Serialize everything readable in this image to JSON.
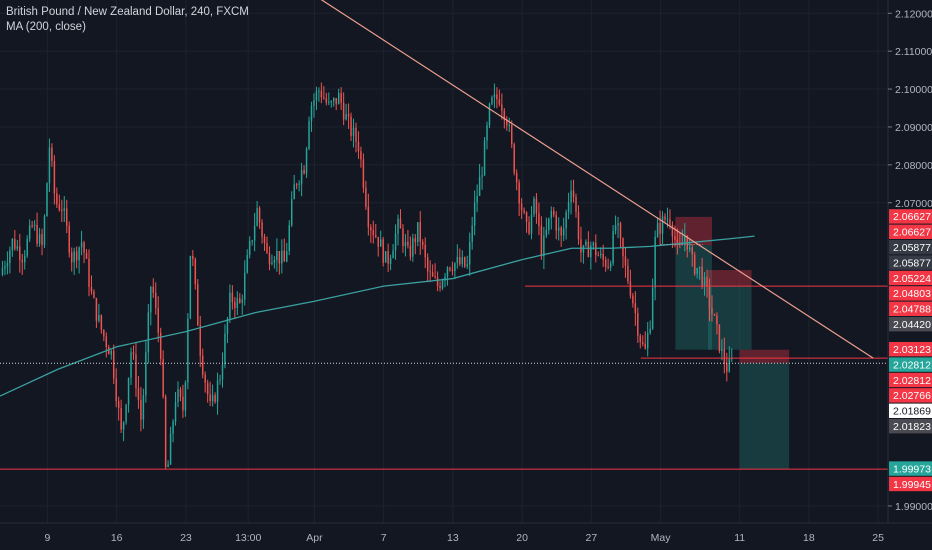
{
  "legend": {
    "title": "British Pound / New Zealand Dollar, 240, FXCM",
    "indicator": "MA (200, close)"
  },
  "chart_data": {
    "type": "candlestick",
    "symbol": "GBPNZD",
    "interval": "240",
    "source": "FXCM",
    "y_axis": {
      "range": [
        1.9855,
        2.1235
      ],
      "ticks": [
        "2.12000",
        "2.11000",
        "2.10000",
        "2.09000",
        "2.08000",
        "2.07000",
        "1.99000"
      ]
    },
    "x_axis": {
      "ticks": [
        {
          "label": "9",
          "t": 9
        },
        {
          "label": "16",
          "t": 16
        },
        {
          "label": "23",
          "t": 23
        },
        {
          "label": "13:00",
          "t": 29.3
        },
        {
          "label": "Apr",
          "t": 36
        },
        {
          "label": "7",
          "t": 43
        },
        {
          "label": "13",
          "t": 50
        },
        {
          "label": "20",
          "t": 57
        },
        {
          "label": "27",
          "t": 64
        },
        {
          "label": "May",
          "t": 71
        },
        {
          "label": "11",
          "t": 79
        },
        {
          "label": "18",
          "t": 86
        },
        {
          "label": "25",
          "t": 93
        }
      ],
      "range": [
        4.2,
        94
      ]
    },
    "ohlc_path": [
      {
        "t": 4.2,
        "p": 2.051
      },
      {
        "t": 5.5,
        "p": 2.06
      },
      {
        "t": 6.5,
        "p": 2.056
      },
      {
        "t": 7.5,
        "p": 2.064
      },
      {
        "t": 8.5,
        "p": 2.058
      },
      {
        "t": 9.2,
        "p": 2.085
      },
      {
        "t": 9.8,
        "p": 2.07
      },
      {
        "t": 10.5,
        "p": 2.069
      },
      {
        "t": 11.5,
        "p": 2.055
      },
      {
        "t": 12.5,
        "p": 2.06
      },
      {
        "t": 13.5,
        "p": 2.045
      },
      {
        "t": 14.5,
        "p": 2.036
      },
      {
        "t": 15.5,
        "p": 2.03
      },
      {
        "t": 16.5,
        "p": 2.008
      },
      {
        "t": 17.5,
        "p": 2.032
      },
      {
        "t": 18.5,
        "p": 2.012
      },
      {
        "t": 19.5,
        "p": 2.05
      },
      {
        "t": 20.5,
        "p": 2.03
      },
      {
        "t": 21.0,
        "p": 1.996
      },
      {
        "t": 22.0,
        "p": 2.02
      },
      {
        "t": 22.8,
        "p": 2.015
      },
      {
        "t": 23.5,
        "p": 2.06
      },
      {
        "t": 24.5,
        "p": 2.03
      },
      {
        "t": 25.5,
        "p": 2.015
      },
      {
        "t": 26.5,
        "p": 2.025
      },
      {
        "t": 27.5,
        "p": 2.045
      },
      {
        "t": 28.5,
        "p": 2.043
      },
      {
        "t": 29.3,
        "p": 2.056
      },
      {
        "t": 30.2,
        "p": 2.068
      },
      {
        "t": 31.2,
        "p": 2.056
      },
      {
        "t": 32.0,
        "p": 2.057
      },
      {
        "t": 33.0,
        "p": 2.054
      },
      {
        "t": 34.0,
        "p": 2.075
      },
      {
        "t": 35.0,
        "p": 2.08
      },
      {
        "t": 35.5,
        "p": 2.095
      },
      {
        "t": 36.5,
        "p": 2.1
      },
      {
        "t": 37.5,
        "p": 2.095
      },
      {
        "t": 38.5,
        "p": 2.098
      },
      {
        "t": 39.5,
        "p": 2.09
      },
      {
        "t": 40.5,
        "p": 2.085
      },
      {
        "t": 41.5,
        "p": 2.065
      },
      {
        "t": 42.5,
        "p": 2.06
      },
      {
        "t": 43.3,
        "p": 2.054
      },
      {
        "t": 44.5,
        "p": 2.064
      },
      {
        "t": 45.5,
        "p": 2.056
      },
      {
        "t": 46.5,
        "p": 2.063
      },
      {
        "t": 47.5,
        "p": 2.051
      },
      {
        "t": 48.5,
        "p": 2.048
      },
      {
        "t": 49.5,
        "p": 2.054
      },
      {
        "t": 50.5,
        "p": 2.054
      },
      {
        "t": 51.5,
        "p": 2.053
      },
      {
        "t": 52.0,
        "p": 2.066
      },
      {
        "t": 53.0,
        "p": 2.08
      },
      {
        "t": 53.8,
        "p": 2.096
      },
      {
        "t": 54.7,
        "p": 2.098
      },
      {
        "t": 55.5,
        "p": 2.092
      },
      {
        "t": 56.3,
        "p": 2.078
      },
      {
        "t": 57.0,
        "p": 2.068
      },
      {
        "t": 57.5,
        "p": 2.062
      },
      {
        "t": 58.3,
        "p": 2.07
      },
      {
        "t": 59.0,
        "p": 2.057
      },
      {
        "t": 60.0,
        "p": 2.068
      },
      {
        "t": 61.0,
        "p": 2.06
      },
      {
        "t": 62.0,
        "p": 2.076
      },
      {
        "t": 63.0,
        "p": 2.056
      },
      {
        "t": 64.0,
        "p": 2.059
      },
      {
        "t": 65.0,
        "p": 2.055
      },
      {
        "t": 65.8,
        "p": 2.054
      },
      {
        "t": 66.5,
        "p": 2.065
      },
      {
        "t": 67.2,
        "p": 2.055
      },
      {
        "t": 68.0,
        "p": 2.047
      },
      {
        "t": 68.8,
        "p": 2.036
      },
      {
        "t": 69.4,
        "p": 2.03
      },
      {
        "t": 70.0,
        "p": 2.04
      },
      {
        "t": 70.5,
        "p": 2.062
      },
      {
        "t": 71.5,
        "p": 2.066
      },
      {
        "t": 72.0,
        "p": 2.066
      },
      {
        "t": 72.8,
        "p": 2.056
      },
      {
        "t": 73.5,
        "p": 2.062
      },
      {
        "t": 74.2,
        "p": 2.054
      },
      {
        "t": 75.0,
        "p": 2.052
      },
      {
        "t": 75.8,
        "p": 2.045
      },
      {
        "t": 76.5,
        "p": 2.038
      },
      {
        "t": 77.2,
        "p": 2.03
      },
      {
        "t": 77.8,
        "p": 2.026
      },
      {
        "t": 78.3,
        "p": 2.0282
      }
    ],
    "moving_average": {
      "name": "MA (200, close)",
      "color": "#3aa0a0",
      "points": [
        {
          "t": 4.2,
          "p": 2.019
        },
        {
          "t": 10,
          "p": 2.026
        },
        {
          "t": 16,
          "p": 2.032
        },
        {
          "t": 23,
          "p": 2.036
        },
        {
          "t": 30,
          "p": 2.041
        },
        {
          "t": 36,
          "p": 2.044
        },
        {
          "t": 43,
          "p": 2.048
        },
        {
          "t": 50,
          "p": 2.05
        },
        {
          "t": 57,
          "p": 2.055
        },
        {
          "t": 62,
          "p": 2.058
        },
        {
          "t": 66,
          "p": 2.058
        },
        {
          "t": 70,
          "p": 2.0585
        },
        {
          "t": 74,
          "p": 2.0595
        },
        {
          "t": 78,
          "p": 2.0605
        },
        {
          "t": 80.5,
          "p": 2.0612
        }
      ]
    },
    "annotations": {
      "trendline": {
        "from": {
          "t": 33.5,
          "p": 2.129
        },
        "to": {
          "t": 92.5,
          "p": 2.029
        },
        "color": "#f0a090"
      },
      "horizontal_lines": [
        {
          "price": 2.048,
          "t_start": 57.3,
          "t_end": 94,
          "color": "#f23645"
        },
        {
          "price": 2.029,
          "t_start": 69.0,
          "t_end": 94,
          "color": "#f23645"
        },
        {
          "price": 1.99973,
          "t_start": 4.2,
          "t_end": 94,
          "color": "#f23645"
        },
        {
          "price": 2.02766,
          "t_start": 4.2,
          "t_end": 94,
          "style": "dotted",
          "color": "#d1d4dc"
        },
        {
          "price": 2.059,
          "t_start": 71.0,
          "t_end": 75.3,
          "style": "dotted",
          "color": "#aaaaaa"
        }
      ],
      "risk_reward_boxes": [
        {
          "t_start": 72.5,
          "t_end": 76.2,
          "stop": 2.06627,
          "entry": 2.05877,
          "target": 2.03123
        },
        {
          "t_start": 75.8,
          "t_end": 80.2,
          "stop": 2.05224,
          "entry": 2.04803,
          "target": 2.03123
        },
        {
          "t_start": 79.0,
          "t_end": 84.0,
          "stop": 2.03123,
          "entry": 2.02766,
          "target": 1.99973
        }
      ]
    },
    "price_labels": [
      {
        "price": 2.06627,
        "text": "2.06627",
        "bg": "#f23645",
        "fg": "#ffffff"
      },
      {
        "price": 2.06627,
        "text": "2.06627",
        "bg": "#f23645",
        "fg": "#ffffff",
        "offset": 1
      },
      {
        "price": 2.05877,
        "text": "2.05877",
        "bg": "#363a45",
        "fg": "#ffffff"
      },
      {
        "price": 2.05877,
        "text": "2.05877",
        "bg": "#363a45",
        "fg": "#ffffff",
        "offset": 1
      },
      {
        "price": 2.05224,
        "text": "2.05224",
        "bg": "#f23645",
        "fg": "#ffffff"
      },
      {
        "price": 2.04803,
        "text": "2.04803",
        "bg": "#f23645",
        "fg": "#ffffff"
      },
      {
        "price": 2.04788,
        "text": "2.04788",
        "bg": "#f23645",
        "fg": "#ffffff"
      },
      {
        "price": 2.0442,
        "text": "2.04420",
        "bg": "#4a4a52",
        "fg": "#ffffff"
      },
      {
        "price": 2.03123,
        "text": "2.03123",
        "bg": "#f23645",
        "fg": "#ffffff"
      },
      {
        "price": 2.02812,
        "text": "2.02812",
        "bg": "#26a69a",
        "fg": "#ffffff"
      },
      {
        "price": 2.02812,
        "text": "2.02812",
        "bg": "#f23645",
        "fg": "#ffffff",
        "offset": 1
      },
      {
        "price": 2.02766,
        "text": "2.02766",
        "bg": "#f23645",
        "fg": "#ffffff"
      },
      {
        "price": 2.01869,
        "text": "2.01869",
        "bg": "#ffffff",
        "fg": "#131722"
      },
      {
        "price": 2.01823,
        "text": "2.01823",
        "bg": "#4a4a52",
        "fg": "#ffffff"
      },
      {
        "price": 1.99973,
        "text": "1.99973",
        "bg": "#26a69a",
        "fg": "#ffffff"
      },
      {
        "price": 1.99945,
        "text": "1.99945",
        "bg": "#f23645",
        "fg": "#ffffff"
      }
    ],
    "colors": {
      "bull": "#26a69a",
      "bear": "#ef5350",
      "grid": "#1e222d",
      "axis_text": "#b2b5be"
    }
  }
}
